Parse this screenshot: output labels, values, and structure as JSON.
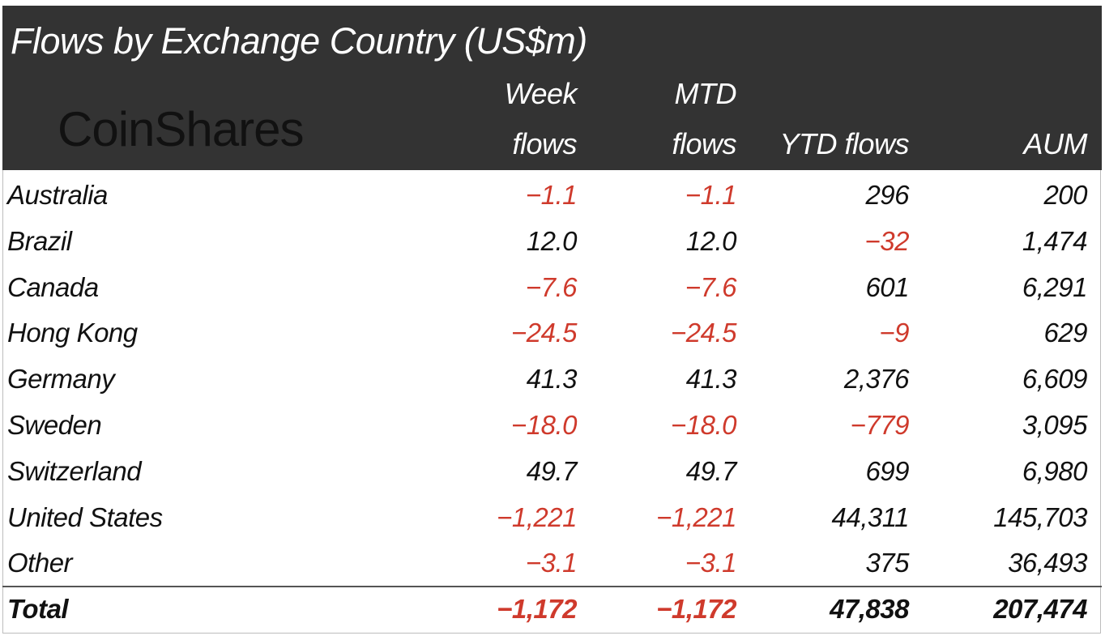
{
  "title": "Flows by Exchange Country (US$m)",
  "logo": "CoinShares",
  "colors": {
    "header_bg": "#333333",
    "negative": "#cf3a2c",
    "text": "#111111"
  },
  "chart_data": {
    "type": "table",
    "title": "Flows by Exchange Country (US$m)",
    "columns": [
      {
        "line1": "",
        "line2": ""
      },
      {
        "line1": "Week",
        "line2": "flows"
      },
      {
        "line1": "MTD",
        "line2": "flows"
      },
      {
        "line1": "",
        "line2": "YTD flows"
      },
      {
        "line1": "",
        "line2": "AUM"
      }
    ],
    "rows": [
      [
        "Australia",
        "-1.1",
        "-1.1",
        "296",
        "200"
      ],
      [
        "Brazil",
        "12.0",
        "12.0",
        "-32",
        "1,474"
      ],
      [
        "Canada",
        "-7.6",
        "-7.6",
        "601",
        "6,291"
      ],
      [
        "Hong Kong",
        "-24.5",
        "-24.5",
        "-9",
        "629"
      ],
      [
        "Germany",
        "41.3",
        "41.3",
        "2,376",
        "6,609"
      ],
      [
        "Sweden",
        "-18.0",
        "-18.0",
        "-779",
        "3,095"
      ],
      [
        "Switzerland",
        "49.7",
        "49.7",
        "699",
        "6,980"
      ],
      [
        "United States",
        "-1,221",
        "-1,221",
        "44,311",
        "145,703"
      ],
      [
        "Other",
        "-3.1",
        "-3.1",
        "375",
        "36,493"
      ]
    ],
    "total": [
      "Total",
      "-1,172",
      "-1,172",
      "47,838",
      "207,474"
    ]
  }
}
